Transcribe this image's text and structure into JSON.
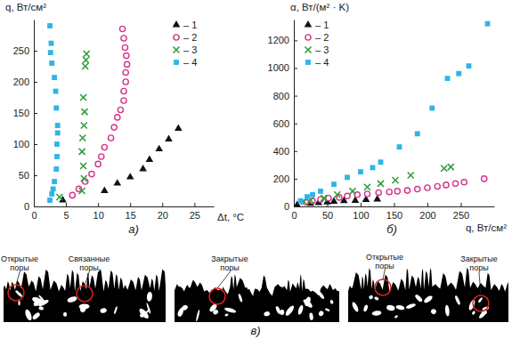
{
  "chart_data": [
    {
      "type": "scatter",
      "title": "а)",
      "x_label": "Δt, °C",
      "y_label": "q, Вт/см²",
      "xlim": [
        0,
        28
      ],
      "xticks": [
        0,
        5,
        10,
        15,
        20,
        25
      ],
      "ylim": [
        0,
        300
      ],
      "yticks": [
        0,
        50,
        100,
        150,
        200,
        250
      ],
      "legend": "upper right",
      "series": [
        {
          "name": "– 1",
          "color": "#111111",
          "marker": "triangle",
          "x": [
            4.5,
            11,
            13,
            15,
            17,
            18,
            19.5,
            21,
            22.5
          ],
          "values": [
            10,
            25,
            37,
            47,
            60,
            75,
            92,
            108,
            125
          ]
        },
        {
          "name": "– 2",
          "color": "#d6338a",
          "marker": "circle_open",
          "x": [
            6,
            7,
            8,
            9,
            10,
            10.5,
            11,
            12,
            12.5,
            13,
            13.5,
            14,
            14,
            14.3,
            14.3,
            14.5,
            14.4,
            14.2,
            14,
            13.8
          ],
          "values": [
            18,
            28,
            40,
            52,
            68,
            80,
            95,
            110,
            127,
            143,
            155,
            170,
            185,
            200,
            215,
            228,
            242,
            255,
            270,
            285
          ]
        },
        {
          "name": "– 3",
          "color": "#2e9e3a",
          "marker": "x",
          "x": [
            4,
            7.5,
            7.8,
            7.7,
            7.5,
            7.6,
            7.8,
            7.9,
            7.7,
            8,
            8.1,
            8.2
          ],
          "values": [
            15,
            25,
            45,
            65,
            88,
            110,
            130,
            152,
            175,
            225,
            235,
            245
          ]
        },
        {
          "name": "– 4",
          "color": "#2fb4e6",
          "marker": "square",
          "x": [
            2.5,
            2.8,
            3,
            3.2,
            3.5,
            3.6,
            3.6,
            3.7,
            3.7,
            3.5,
            3.4,
            3.2,
            2.8,
            2.6,
            2.7,
            2.5
          ],
          "values": [
            10,
            20,
            28,
            40,
            60,
            80,
            100,
            118,
            130,
            158,
            185,
            207,
            230,
            247,
            262,
            290
          ]
        }
      ]
    },
    {
      "type": "scatter",
      "title": "б)",
      "x_label": "q, Вт/см²",
      "y_label": "α, Вт/(м² · K)",
      "xlim": [
        0,
        300
      ],
      "xticks": [
        0,
        50,
        100,
        150,
        200,
        250
      ],
      "ylim": [
        0,
        1350
      ],
      "yticks": [
        0,
        200,
        400,
        600,
        800,
        1000,
        1200
      ],
      "legend": "upper left",
      "series": [
        {
          "name": "– 1",
          "color": "#111111",
          "marker": "triangle",
          "x": [
            5,
            25,
            37,
            50,
            60,
            75,
            92,
            108,
            125
          ],
          "values": [
            10,
            20,
            25,
            30,
            35,
            40,
            42,
            48,
            52
          ]
        },
        {
          "name": "– 2",
          "color": "#d6338a",
          "marker": "circle_open",
          "x": [
            18,
            28,
            40,
            52,
            68,
            80,
            95,
            110,
            127,
            143,
            155,
            170,
            185,
            200,
            215,
            228,
            242,
            255,
            285
          ],
          "values": [
            30,
            40,
            50,
            60,
            65,
            75,
            85,
            90,
            100,
            105,
            110,
            115,
            125,
            135,
            145,
            155,
            165,
            175,
            200
          ]
        },
        {
          "name": "– 3",
          "color": "#2e9e3a",
          "marker": "x",
          "x": [
            15,
            25,
            45,
            65,
            88,
            110,
            130,
            152,
            175,
            225,
            235
          ],
          "values": [
            35,
            45,
            60,
            85,
            110,
            140,
            165,
            190,
            225,
            275,
            285
          ]
        },
        {
          "name": "– 4",
          "color": "#2fb4e6",
          "marker": "square",
          "x": [
            10,
            20,
            28,
            40,
            60,
            80,
            100,
            118,
            130,
            158,
            185,
            207,
            230,
            247,
            262,
            290
          ],
          "values": [
            40,
            70,
            85,
            110,
            160,
            210,
            250,
            280,
            320,
            430,
            525,
            710,
            925,
            960,
            1015,
            1320
          ]
        }
      ]
    }
  ],
  "porous_figure": {
    "label": "в)",
    "panels": [
      {
        "callouts": [
          {
            "text": "Открытые поры"
          },
          {
            "text": "Связанные поры"
          }
        ]
      },
      {
        "callouts": [
          {
            "text": "Закрытые поры"
          }
        ]
      },
      {
        "callouts": [
          {
            "text": "Открытые поры"
          },
          {
            "text": "Закрытые поры"
          }
        ]
      }
    ]
  }
}
